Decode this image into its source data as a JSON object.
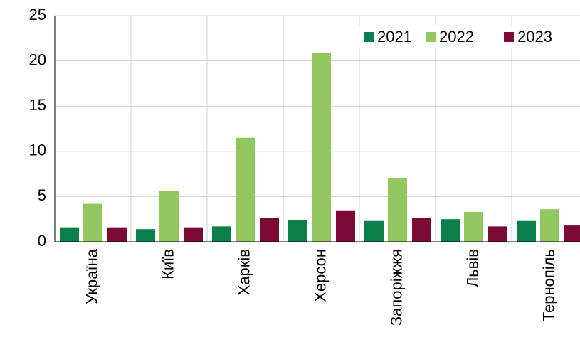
{
  "chart_data": {
    "type": "bar",
    "categories": [
      "Україна",
      "Київ",
      "Харків",
      "Херсон",
      "Запоріжжя",
      "Львів",
      "Тернопіль"
    ],
    "series": [
      {
        "name": "2021",
        "color": "#0a7f4a",
        "values": [
          1.6,
          1.4,
          1.7,
          2.4,
          2.3,
          2.5,
          2.3
        ]
      },
      {
        "name": "2022",
        "color": "#92c660",
        "values": [
          4.2,
          5.6,
          11.5,
          20.9,
          7.0,
          3.3,
          3.6
        ]
      },
      {
        "name": "2023",
        "color": "#7b0a35",
        "values": [
          1.6,
          1.6,
          2.6,
          3.4,
          2.6,
          1.7,
          1.8
        ]
      }
    ],
    "ylim": [
      0,
      25
    ],
    "yticks": [
      0,
      5,
      10,
      15,
      20,
      25
    ],
    "grid": true,
    "legend": "top-right"
  }
}
